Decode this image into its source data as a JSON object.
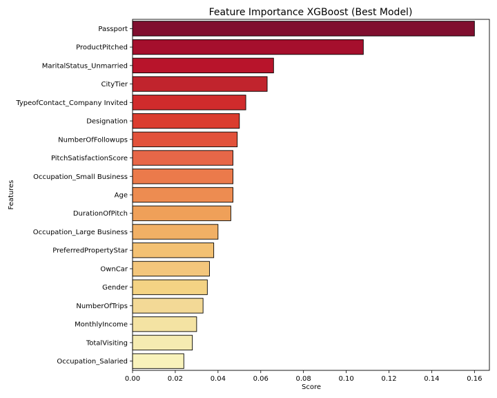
{
  "chart_data": {
    "type": "bar",
    "orientation": "horizontal",
    "title": "Feature Importance XGBoost (Best Model)",
    "xlabel": "Score",
    "ylabel": "Features",
    "xlim": [
      0,
      0.167
    ],
    "xticks": [
      "0.00",
      "0.02",
      "0.04",
      "0.06",
      "0.08",
      "0.10",
      "0.12",
      "0.14",
      "0.16"
    ],
    "grid": false,
    "legend": "none",
    "categories": [
      "Passport",
      "ProductPitched",
      "MaritalStatus_Unmarried",
      "CityTier",
      "TypeofContact_Company Invited",
      "Designation",
      "NumberOfFollowups",
      "PitchSatisfactionScore",
      "Occupation_Small Business",
      "Age",
      "DurationOfPitch",
      "Occupation_Large Business",
      "PreferredPropertyStar",
      "OwnCar",
      "Gender",
      "NumberOfTrips",
      "MonthlyIncome",
      "TotalVisiting",
      "Occupation_Salaried"
    ],
    "values": [
      0.16,
      0.108,
      0.066,
      0.063,
      0.053,
      0.05,
      0.049,
      0.047,
      0.047,
      0.047,
      0.046,
      0.04,
      0.038,
      0.036,
      0.035,
      0.033,
      0.03,
      0.028,
      0.024
    ],
    "colors": [
      "#800f2f",
      "#a50f2d",
      "#b8142b",
      "#c1242d",
      "#d02b2c",
      "#db3d2f",
      "#e2523b",
      "#e76748",
      "#eb7a4b",
      "#ed8c51",
      "#efa059",
      "#f1b065",
      "#f3c173",
      "#f3c67c",
      "#f4d384",
      "#f3d996",
      "#f4e3a3",
      "#f5ebb1",
      "#f8f2bb"
    ],
    "edgecolor": "#000000"
  }
}
